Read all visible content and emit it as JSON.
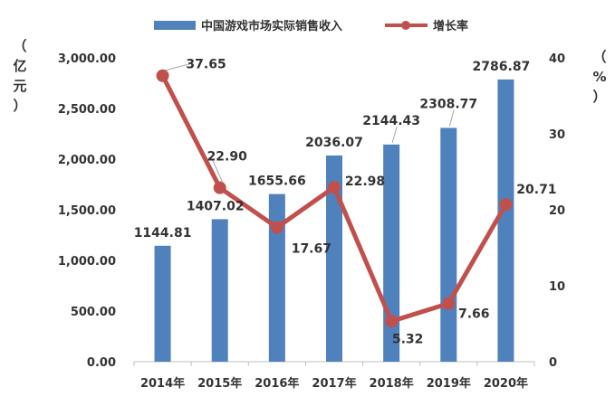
{
  "chart_data": {
    "type": "bar+line",
    "categories": [
      "2014年",
      "2015年",
      "2016年",
      "2017年",
      "2018年",
      "2019年",
      "2020年"
    ],
    "series": [
      {
        "name": "中国游戏市场实际销售收入",
        "type": "bar",
        "axis": "left",
        "values": [
          1144.81,
          1407.02,
          1655.66,
          2036.07,
          2144.43,
          2308.77,
          2786.87
        ],
        "labels": [
          "1144.81",
          "1407.02",
          "1655.66",
          "2036.07",
          "2144.43",
          "2308.77",
          "2786.87"
        ],
        "color": "#4f81bd"
      },
      {
        "name": "增长率",
        "type": "line",
        "axis": "right",
        "values": [
          37.65,
          22.9,
          17.67,
          22.98,
          5.32,
          7.66,
          20.71
        ],
        "labels": [
          "37.65",
          "22.90",
          "17.67",
          "22.98",
          "5.32",
          "7.66",
          "20.71"
        ],
        "color": "#c0504d"
      }
    ],
    "y_left": {
      "label": "（亿元）",
      "range": [
        0,
        3000
      ],
      "ticks": [
        "0.00",
        "500.00",
        "1,000.00",
        "1,500.00",
        "2,000.00",
        "2,500.00",
        "3,000.00"
      ]
    },
    "y_right": {
      "label": "（%）",
      "range": [
        0,
        40
      ],
      "ticks": [
        "0",
        "10",
        "20",
        "30",
        "40"
      ]
    },
    "grid": false,
    "legend_position": "top"
  }
}
